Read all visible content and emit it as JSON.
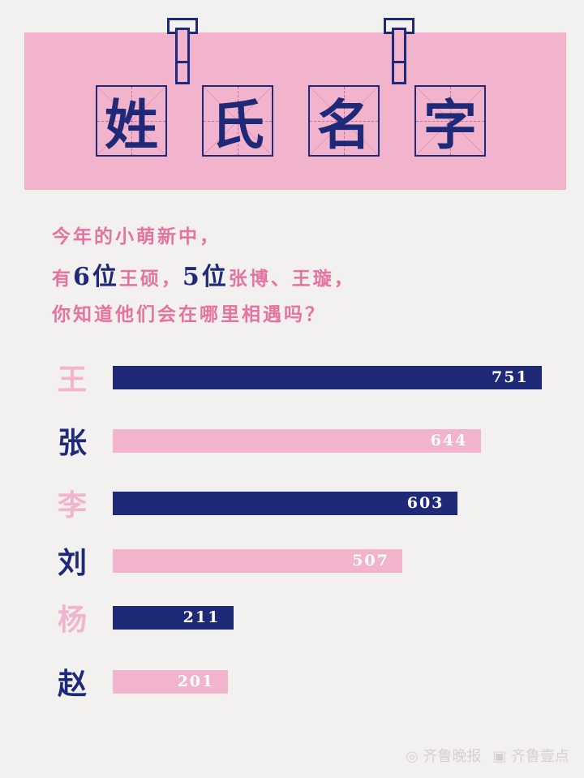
{
  "title_chars": [
    "姓",
    "氏",
    "名",
    "字"
  ],
  "subtitle": {
    "line1": "今年的小萌新中，",
    "line2_a": "有",
    "line2_b": "6位",
    "line2_c": "王硕，",
    "line2_d": "5位",
    "line2_e": "张博、王璇，",
    "line3": "你知道他们会在哪里相遇吗？"
  },
  "watermark": {
    "brand1": "齐鲁晚报",
    "brand2": "齐鲁壹点"
  },
  "colors": {
    "navy": "#1e2a78",
    "pink": "#f2b3cc",
    "text_pink": "#e5739f",
    "background": "#f3f1ef"
  },
  "chart_data": {
    "type": "bar",
    "orientation": "horizontal",
    "categories": [
      "王",
      "张",
      "李",
      "刘",
      "杨",
      "赵"
    ],
    "values": [
      751,
      644,
      603,
      507,
      211,
      201
    ],
    "value_labels": [
      "751",
      "644",
      "603",
      "507",
      "211",
      "201"
    ],
    "bar_colors": [
      "#1e2a78",
      "#f2b3cc",
      "#1e2a78",
      "#f2b3cc",
      "#1e2a78",
      "#f2b3cc"
    ],
    "label_colors": [
      "#f2b3cc",
      "#1e2a78",
      "#f2b3cc",
      "#1e2a78",
      "#f2b3cc",
      "#1e2a78"
    ],
    "xlim": [
      0,
      751
    ],
    "grid": false
  }
}
